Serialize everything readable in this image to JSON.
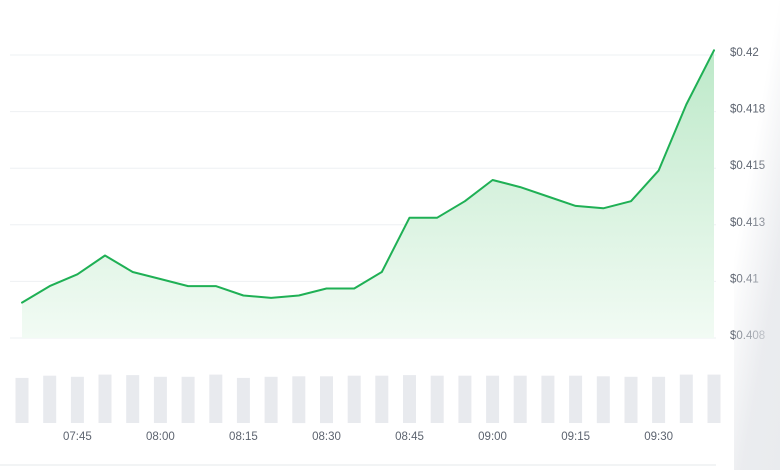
{
  "chart_data": {
    "type": "area",
    "x_ticks": [
      "07:45",
      "08:00",
      "08:15",
      "08:30",
      "08:45",
      "09:00",
      "09:15",
      "09:30"
    ],
    "y_ticks": [
      "$0.408",
      "$0.41",
      "$0.413",
      "$0.415",
      "$0.418",
      "$0.42"
    ],
    "ylim": [
      0.408,
      0.42
    ],
    "x_range_minutes": [
      "07:35",
      "09:40"
    ],
    "grid": "horizontal",
    "y_axis_position": "right",
    "price_series": {
      "x": [
        "07:35",
        "07:40",
        "07:45",
        "07:50",
        "07:55",
        "08:00",
        "08:05",
        "08:10",
        "08:15",
        "08:20",
        "08:25",
        "08:30",
        "08:35",
        "08:40",
        "08:45",
        "08:50",
        "08:55",
        "09:00",
        "09:05",
        "09:10",
        "09:15",
        "09:20",
        "09:25",
        "09:30",
        "09:35",
        "09:40"
      ],
      "values": [
        0.4095,
        0.4102,
        0.4107,
        0.4115,
        0.4108,
        0.4105,
        0.4102,
        0.4102,
        0.4098,
        0.4097,
        0.4098,
        0.4101,
        0.4101,
        0.4108,
        0.4131,
        0.4131,
        0.4138,
        0.4147,
        0.4144,
        0.414,
        0.4136,
        0.4135,
        0.4138,
        0.4151,
        0.4179,
        0.4202
      ]
    },
    "volume_series": {
      "values": [
        0.82,
        0.86,
        0.84,
        0.88,
        0.87,
        0.84,
        0.84,
        0.88,
        0.82,
        0.84,
        0.85,
        0.85,
        0.86,
        0.86,
        0.87,
        0.86,
        0.86,
        0.86,
        0.86,
        0.86,
        0.86,
        0.85,
        0.84,
        0.84,
        0.88,
        0.88
      ]
    },
    "colors": {
      "line": "#1fb055",
      "area_top": "#bde9c9",
      "area_bottom": "#f2fbf4",
      "volume_bar": "#e8eaee",
      "grid": "#eef0f3",
      "label": "#5d6470"
    }
  }
}
